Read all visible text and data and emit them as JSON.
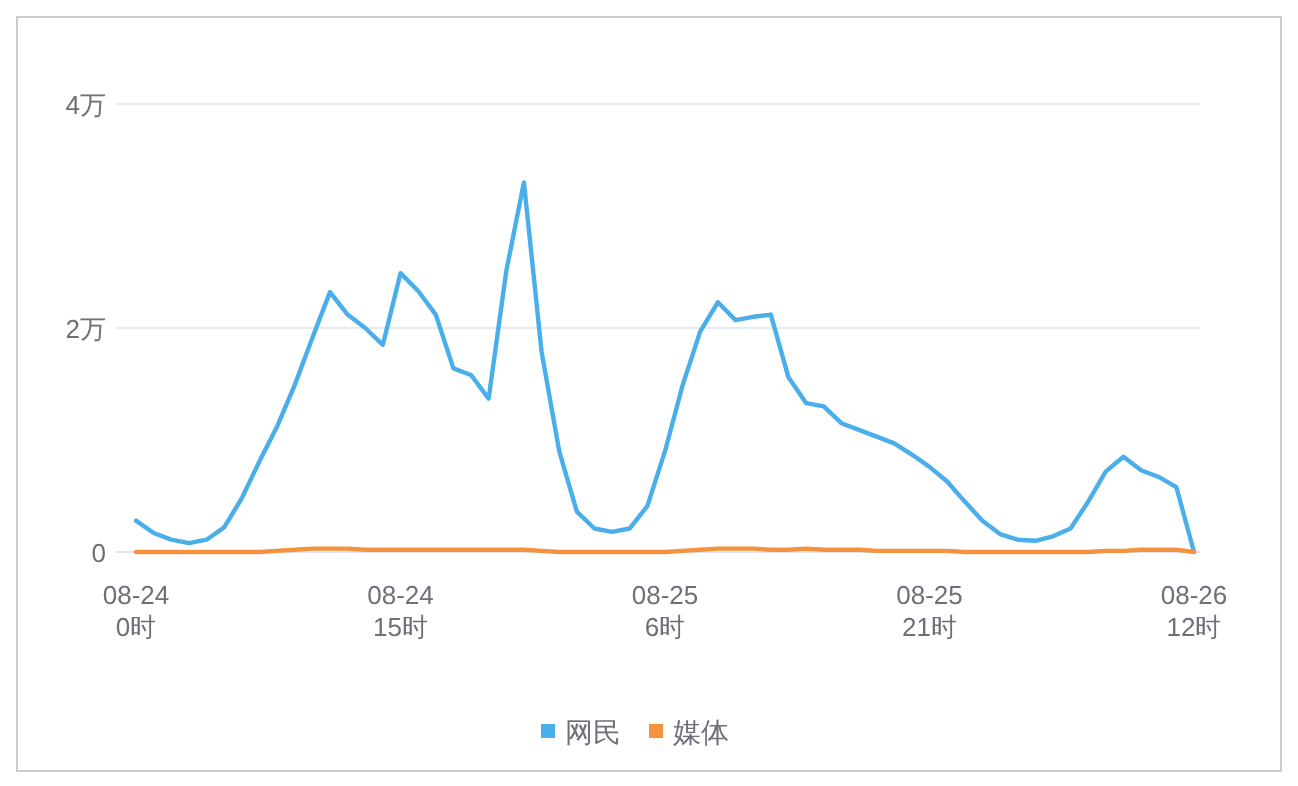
{
  "chart_data": {
    "type": "line",
    "categories": [
      "08-24\n0时",
      null,
      null,
      null,
      null,
      null,
      null,
      null,
      null,
      null,
      null,
      null,
      null,
      null,
      null,
      "08-24\n15时",
      null,
      null,
      null,
      null,
      null,
      null,
      null,
      null,
      null,
      null,
      null,
      null,
      null,
      null,
      "08-25\n6时",
      null,
      null,
      null,
      null,
      null,
      null,
      null,
      null,
      null,
      null,
      null,
      null,
      null,
      null,
      "08-25\n21时",
      null,
      null,
      null,
      null,
      null,
      null,
      null,
      null,
      null,
      null,
      null,
      null,
      null,
      null,
      "08-26\n12时"
    ],
    "series": [
      {
        "name": "网民",
        "color": "#4aaeeb",
        "values": [
          0.28,
          0.17,
          0.11,
          0.08,
          0.11,
          0.22,
          0.48,
          0.81,
          1.12,
          1.49,
          1.91,
          2.32,
          2.12,
          2.0,
          1.85,
          2.49,
          2.33,
          2.12,
          1.64,
          1.58,
          1.37,
          2.51,
          3.3,
          1.79,
          0.9,
          0.36,
          0.21,
          0.18,
          0.21,
          0.41,
          0.9,
          1.49,
          1.97,
          2.23,
          2.07,
          2.1,
          2.12,
          1.56,
          1.33,
          1.3,
          1.15,
          1.09,
          1.03,
          0.97,
          0.87,
          0.76,
          0.63,
          0.45,
          0.28,
          0.16,
          0.11,
          0.1,
          0.14,
          0.21,
          0.45,
          0.72,
          0.85,
          0.73,
          0.67,
          0.58,
          0
        ]
      },
      {
        "name": "媒体",
        "color": "#f5923e",
        "values": [
          0,
          0,
          0,
          0,
          0,
          0,
          0,
          0,
          0.01,
          0.02,
          0.03,
          0.03,
          0.03,
          0.02,
          0.02,
          0.02,
          0.02,
          0.02,
          0.02,
          0.02,
          0.02,
          0.02,
          0.02,
          0.01,
          0,
          0,
          0,
          0,
          0,
          0,
          0,
          0.01,
          0.02,
          0.03,
          0.03,
          0.03,
          0.02,
          0.02,
          0.03,
          0.02,
          0.02,
          0.02,
          0.01,
          0.01,
          0.01,
          0.01,
          0.01,
          0,
          0,
          0,
          0,
          0,
          0,
          0,
          0,
          0.01,
          0.01,
          0.02,
          0.02,
          0.02,
          0
        ]
      }
    ],
    "ylim": [
      0,
      4
    ],
    "yticks": [
      0,
      {
        "value": 2,
        "label": "2万"
      },
      {
        "value": 4,
        "label": "4万"
      }
    ],
    "grid": "y",
    "legend": "bottom"
  }
}
